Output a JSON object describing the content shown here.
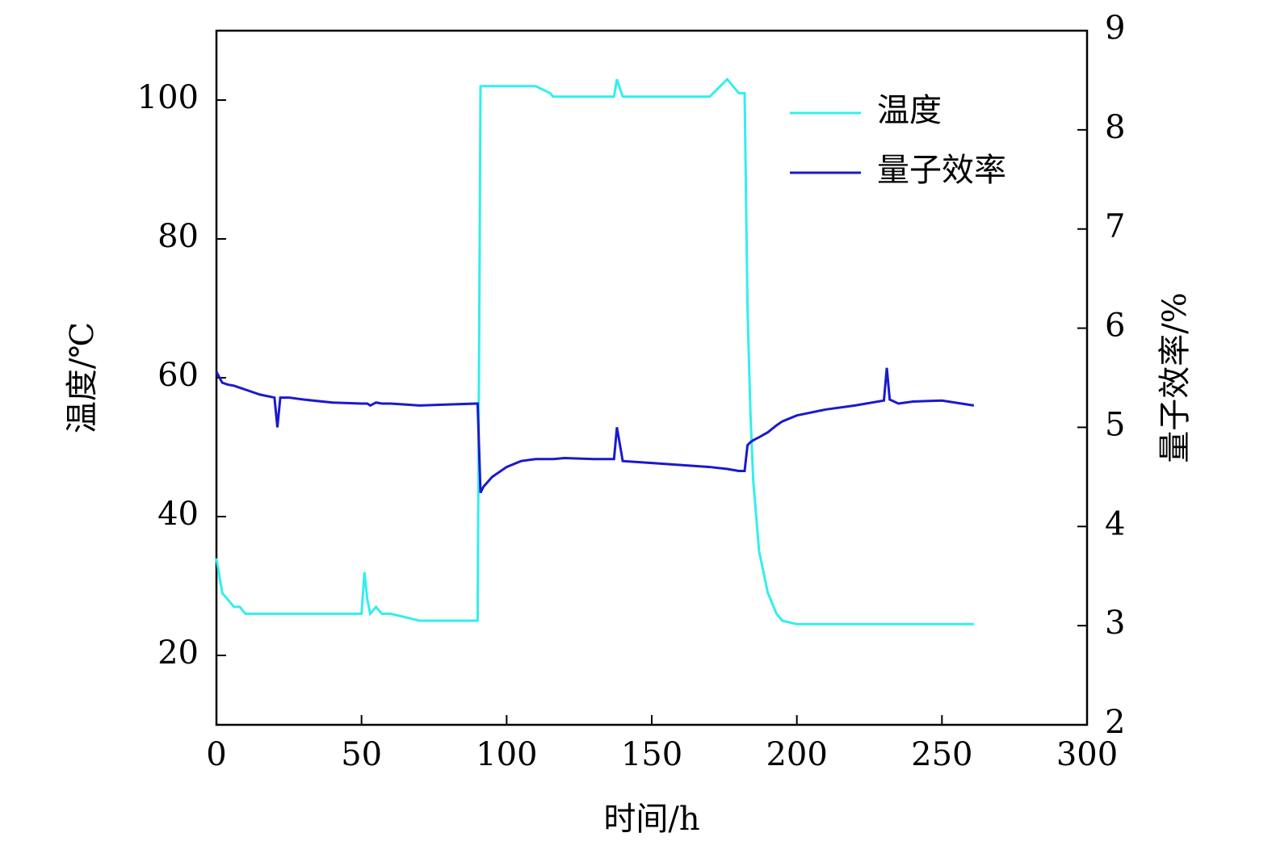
{
  "chart_data": {
    "type": "line",
    "xlabel": "时间/h",
    "ylabel": "温度/℃",
    "y2label": "量子效率/%",
    "x": [
      0,
      2,
      4,
      6,
      8,
      10,
      15,
      20,
      21,
      22,
      25,
      30,
      40,
      50,
      51,
      52,
      53,
      55,
      57,
      60,
      70,
      80,
      90,
      91,
      92,
      95,
      100,
      105,
      110,
      115,
      116,
      120,
      130,
      137,
      138,
      140,
      150,
      160,
      170,
      176,
      180,
      182,
      183,
      184,
      185,
      187,
      190,
      193,
      195,
      200,
      210,
      220,
      230,
      231,
      232,
      235,
      240,
      250,
      261
    ],
    "series": [
      {
        "name": "温度",
        "color": "#33eeee",
        "axis": "y",
        "values": [
          34,
          29,
          28,
          27,
          27,
          26,
          26,
          26,
          26,
          26,
          26,
          26,
          26,
          26,
          32,
          28,
          26,
          27,
          26,
          26,
          25,
          25,
          25,
          102,
          102,
          102,
          102,
          102,
          102,
          101,
          100.5,
          100.5,
          100.5,
          100.5,
          103,
          100.5,
          100.5,
          100.5,
          100.5,
          103,
          101,
          101,
          70,
          55,
          45,
          35,
          29,
          26,
          25,
          24.5,
          24.5,
          24.5,
          24.5,
          24.5,
          24.5,
          24.5,
          24.5,
          24.5,
          24.5
        ]
      },
      {
        "name": "量子效率",
        "color": "#1a1acc",
        "axis": "y2",
        "values": [
          5.56,
          5.45,
          5.43,
          5.42,
          5.4,
          5.38,
          5.33,
          5.3,
          5.0,
          5.3,
          5.3,
          5.28,
          5.25,
          5.24,
          5.24,
          5.24,
          5.22,
          5.25,
          5.24,
          5.24,
          5.22,
          5.23,
          5.24,
          4.34,
          4.4,
          4.5,
          4.6,
          4.66,
          4.68,
          4.68,
          4.68,
          4.69,
          4.68,
          4.68,
          5.0,
          4.66,
          4.64,
          4.62,
          4.6,
          4.58,
          4.56,
          4.56,
          4.82,
          4.85,
          4.87,
          4.9,
          4.95,
          5.02,
          5.06,
          5.12,
          5.18,
          5.22,
          5.27,
          5.6,
          5.28,
          5.24,
          5.26,
          5.27,
          5.22
        ]
      }
    ],
    "xlim": [
      0,
      300
    ],
    "xticks": [
      0,
      50,
      100,
      150,
      200,
      250,
      300
    ],
    "ylim": [
      10,
      110
    ],
    "yticks": [
      20,
      40,
      60,
      80,
      100
    ],
    "y2lim": [
      2,
      9
    ],
    "y2ticks": [
      2,
      3,
      4,
      5,
      6,
      7,
      8,
      9
    ],
    "legend": "upper right"
  }
}
